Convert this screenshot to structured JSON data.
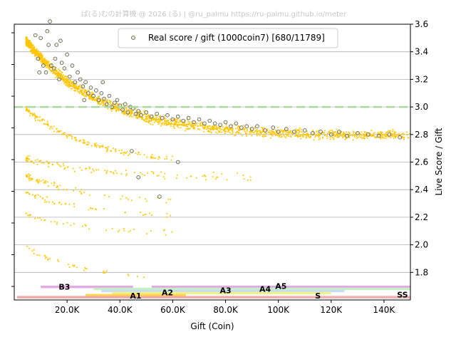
{
  "watermark": "ぱ(る)むの計算機 @ 2026 (る) | @ru_palmu  https://ru-palmu.github.io/meter",
  "chart_data": {
    "type": "scatter",
    "title": "",
    "xlabel": "Gift (Coin)",
    "ylabel": "Live Score / Gift",
    "xlim": [
      0,
      150000
    ],
    "ylim": [
      1.6,
      3.6
    ],
    "y_axis_side": "right",
    "grid": "horizontal",
    "legend_position": "top-center",
    "x_ticks": [
      {
        "value": 20000,
        "label": "20.0K"
      },
      {
        "value": 40000,
        "label": "40.0K"
      },
      {
        "value": 60000,
        "label": "60.0K"
      },
      {
        "value": 80000,
        "label": "80.0K"
      },
      {
        "value": 100000,
        "label": "100K"
      },
      {
        "value": 120000,
        "label": "120K"
      },
      {
        "value": 140000,
        "label": "140K"
      }
    ],
    "y_ticks": [
      {
        "value": 1.8,
        "label": "1.8"
      },
      {
        "value": 2.0,
        "label": "2.0"
      },
      {
        "value": 2.2,
        "label": "2.2"
      },
      {
        "value": 2.4,
        "label": "2.4"
      },
      {
        "value": 2.6,
        "label": "2.6"
      },
      {
        "value": 2.8,
        "label": "2.8"
      },
      {
        "value": 3.0,
        "label": "3.0"
      },
      {
        "value": 3.2,
        "label": "3.2"
      },
      {
        "value": 3.4,
        "label": "3.4"
      },
      {
        "value": 3.6,
        "label": "3.6"
      }
    ],
    "reference_line": {
      "y": 3.0,
      "color": "#a8d8a0",
      "style": "dashed"
    },
    "series": [
      {
        "name": "Real score / gift (1000coin7) [680/11789]",
        "color": "#e8e8c0",
        "edge_color": "#555555",
        "points": [
          [
            9000,
            3.35
          ],
          [
            10000,
            3.5
          ],
          [
            11000,
            3.3
          ],
          [
            12000,
            3.25
          ],
          [
            13000,
            3.45
          ],
          [
            14000,
            3.3
          ],
          [
            15000,
            3.28
          ],
          [
            16000,
            3.45
          ],
          [
            17000,
            3.2
          ],
          [
            18000,
            3.32
          ],
          [
            19000,
            3.28
          ],
          [
            20000,
            3.38
          ],
          [
            21000,
            3.22
          ],
          [
            22000,
            3.3
          ],
          [
            23000,
            3.18
          ],
          [
            24000,
            3.25
          ],
          [
            25000,
            3.2
          ],
          [
            26000,
            3.15
          ],
          [
            27000,
            3.18
          ],
          [
            28000,
            3.1
          ],
          [
            29000,
            3.14
          ],
          [
            30000,
            3.08
          ],
          [
            31000,
            3.12
          ],
          [
            32000,
            3.05
          ],
          [
            33000,
            3.1
          ],
          [
            34000,
            3.06
          ],
          [
            35000,
            3.02
          ],
          [
            36000,
            3.08
          ],
          [
            37000,
            3.0
          ],
          [
            38000,
            3.03
          ],
          [
            39000,
            3.05
          ],
          [
            40000,
            3.01
          ],
          [
            41000,
            2.98
          ],
          [
            42000,
            3.02
          ],
          [
            43000,
            2.96
          ],
          [
            44000,
            3.0
          ],
          [
            45000,
            2.99
          ],
          [
            46000,
            2.95
          ],
          [
            47000,
            2.97
          ],
          [
            48000,
            2.94
          ],
          [
            50000,
            2.96
          ],
          [
            52000,
            2.93
          ],
          [
            54000,
            2.95
          ],
          [
            56000,
            2.92
          ],
          [
            58000,
            2.94
          ],
          [
            60000,
            2.91
          ],
          [
            62000,
            2.93
          ],
          [
            64000,
            2.9
          ],
          [
            66000,
            2.92
          ],
          [
            68000,
            2.89
          ],
          [
            70000,
            2.91
          ],
          [
            72000,
            2.88
          ],
          [
            74000,
            2.9
          ],
          [
            76000,
            2.88
          ],
          [
            78000,
            2.87
          ],
          [
            80000,
            2.89
          ],
          [
            82000,
            2.86
          ],
          [
            84000,
            2.88
          ],
          [
            86000,
            2.85
          ],
          [
            88000,
            2.86
          ],
          [
            90000,
            2.84
          ],
          [
            92000,
            2.86
          ],
          [
            95000,
            2.83
          ],
          [
            98000,
            2.85
          ],
          [
            100000,
            2.82
          ],
          [
            103000,
            2.84
          ],
          [
            106000,
            2.82
          ],
          [
            110000,
            2.83
          ],
          [
            113000,
            2.81
          ],
          [
            116000,
            2.82
          ],
          [
            120000,
            2.8
          ],
          [
            123000,
            2.82
          ],
          [
            126000,
            2.79
          ],
          [
            130000,
            2.81
          ],
          [
            134000,
            2.8
          ],
          [
            138000,
            2.79
          ],
          [
            142000,
            2.8
          ],
          [
            146000,
            2.78
          ],
          [
            8000,
            3.52
          ],
          [
            9500,
            3.25
          ],
          [
            12500,
            3.55
          ],
          [
            13500,
            3.62
          ],
          [
            15500,
            3.35
          ],
          [
            17500,
            3.48
          ],
          [
            26500,
            3.05
          ],
          [
            33500,
            3.18
          ],
          [
            44500,
            2.68
          ],
          [
            47000,
            2.49
          ],
          [
            55000,
            2.35
          ],
          [
            62000,
            2.6
          ]
        ]
      },
      {
        "name": "",
        "color": "#ffc400",
        "clusters": [
          {
            "x0": 4500,
            "x1": 150000,
            "y_start": 3.48,
            "y_end": 2.79,
            "decay": 28000,
            "count": 1800,
            "spread": 0.05
          },
          {
            "x0": 4500,
            "x1": 60000,
            "y_start": 2.98,
            "y_end": 2.58,
            "decay": 25000,
            "count": 160,
            "spread": 0.03
          },
          {
            "x0": 4500,
            "x1": 90000,
            "y_start": 2.62,
            "y_end": 2.48,
            "decay": 30000,
            "count": 110,
            "spread": 0.04
          },
          {
            "x0": 4500,
            "x1": 60000,
            "y_start": 2.5,
            "y_end": 2.3,
            "decay": 25000,
            "count": 70,
            "spread": 0.03
          },
          {
            "x0": 4500,
            "x1": 60000,
            "y_start": 2.38,
            "y_end": 2.2,
            "decay": 22000,
            "count": 50,
            "spread": 0.03
          },
          {
            "x0": 4500,
            "x1": 60000,
            "y_start": 2.22,
            "y_end": 2.08,
            "decay": 22000,
            "count": 40,
            "spread": 0.03
          },
          {
            "x0": 4500,
            "x1": 50000,
            "y_start": 1.98,
            "y_end": 1.75,
            "decay": 20000,
            "count": 35,
            "spread": 0.03
          }
        ]
      }
    ],
    "rank_bands": [
      {
        "label": "B3",
        "x0": 10000,
        "x1": 45000,
        "y": 1.695,
        "color": "#e0a0e0",
        "label_x": 19000,
        "label_y": 1.695
      },
      {
        "label": "A5",
        "x0": 52000,
        "x1": 150000,
        "y": 1.695,
        "color": "#e0a0e0",
        "label_x": 101000,
        "label_y": 1.7
      },
      {
        "label": "A4",
        "x0": 30000,
        "x1": 150000,
        "y": 1.68,
        "color": "#c0f0c0",
        "label_x": 95000,
        "label_y": 1.68
      },
      {
        "label": "A3",
        "x0": 33000,
        "x1": 125000,
        "y": 1.665,
        "color": "#c0d8f0",
        "label_x": 80000,
        "label_y": 1.67
      },
      {
        "label": "A2",
        "x0": 37000,
        "x1": 120000,
        "y": 1.65,
        "color": "#f0f080",
        "label_x": 58000,
        "label_y": 1.655
      },
      {
        "label": "A1",
        "x0": 27000,
        "x1": 65000,
        "y": 1.635,
        "color": "#ffd040",
        "label_x": 46000,
        "label_y": 1.63
      },
      {
        "label": "S",
        "x0": 1000,
        "x1": 150000,
        "y": 1.62,
        "color": "#f0a0a0",
        "label_x": 115000,
        "label_y": 1.63
      },
      {
        "label": "SS",
        "x0": 100000,
        "x1": 150000,
        "y": 1.62,
        "color": "#f0b0b0",
        "label_x": 147000,
        "label_y": 1.64
      }
    ]
  }
}
